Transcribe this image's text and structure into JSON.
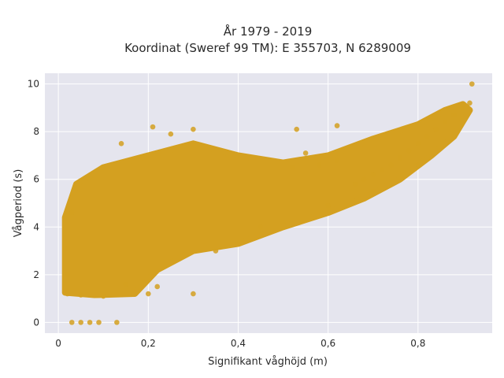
{
  "chart_data": {
    "type": "scatter",
    "title_lines": [
      "År 1979 - 2019",
      "Koordinat (Sweref 99 TM): E 355703, N 6289009"
    ],
    "xlabel": "Signifikant våghöjd (m)",
    "ylabel": "Vågperiod (s)",
    "xlim": [
      -0.03,
      0.965
    ],
    "ylim": [
      -0.45,
      10.45
    ],
    "x_ticks": [
      0,
      0.2,
      0.4,
      0.6,
      0.8
    ],
    "x_tick_labels": [
      "0",
      "0,2",
      "0,4",
      "0,6",
      "0,8"
    ],
    "y_ticks": [
      0,
      2,
      4,
      6,
      8,
      10
    ],
    "y_tick_labels": [
      "0",
      "2",
      "4",
      "6",
      "8",
      "10"
    ],
    "grid": true,
    "colors": {
      "marker": "#d4a020",
      "plot_bg": "#e5e5ee",
      "grid": "#ffffff"
    },
    "series": [
      {
        "points": [
          [
            0.92,
            10.0
          ],
          [
            0.915,
            9.2
          ],
          [
            0.9,
            9.0
          ],
          [
            0.88,
            8.7
          ],
          [
            0.86,
            8.4
          ],
          [
            0.84,
            8.1
          ],
          [
            0.82,
            7.8
          ],
          [
            0.8,
            7.5
          ],
          [
            0.78,
            7.2
          ],
          [
            0.76,
            6.9
          ],
          [
            0.74,
            6.6
          ],
          [
            0.72,
            6.4
          ],
          [
            0.7,
            6.2
          ],
          [
            0.68,
            6.0
          ],
          [
            0.66,
            5.8
          ],
          [
            0.62,
            6.8
          ],
          [
            0.58,
            6.6
          ],
          [
            0.55,
            7.1
          ],
          [
            0.52,
            6.5
          ],
          [
            0.62,
            8.25
          ],
          [
            0.53,
            8.1
          ],
          [
            0.3,
            8.1
          ],
          [
            0.21,
            8.2
          ],
          [
            0.25,
            7.9
          ],
          [
            0.14,
            7.5
          ],
          [
            0.1,
            6.5
          ],
          [
            0.03,
            4.6
          ],
          [
            0.02,
            3.1
          ],
          [
            0.02,
            2.0
          ],
          [
            0.02,
            1.2
          ],
          [
            0.05,
            1.15
          ],
          [
            0.1,
            1.1
          ],
          [
            0.2,
            1.2
          ],
          [
            0.3,
            1.2
          ],
          [
            0.15,
            1.6
          ],
          [
            0.22,
            1.5
          ],
          [
            0.03,
            0.0
          ],
          [
            0.05,
            0.0
          ],
          [
            0.07,
            0.0
          ],
          [
            0.09,
            0.0
          ],
          [
            0.13,
            0.0
          ],
          [
            0.45,
            4.0
          ],
          [
            0.4,
            3.3
          ],
          [
            0.35,
            3.0
          ],
          [
            0.5,
            4.2
          ],
          [
            0.6,
            4.9
          ],
          [
            0.7,
            5.5
          ],
          [
            0.8,
            6.6
          ]
        ]
      }
    ]
  }
}
